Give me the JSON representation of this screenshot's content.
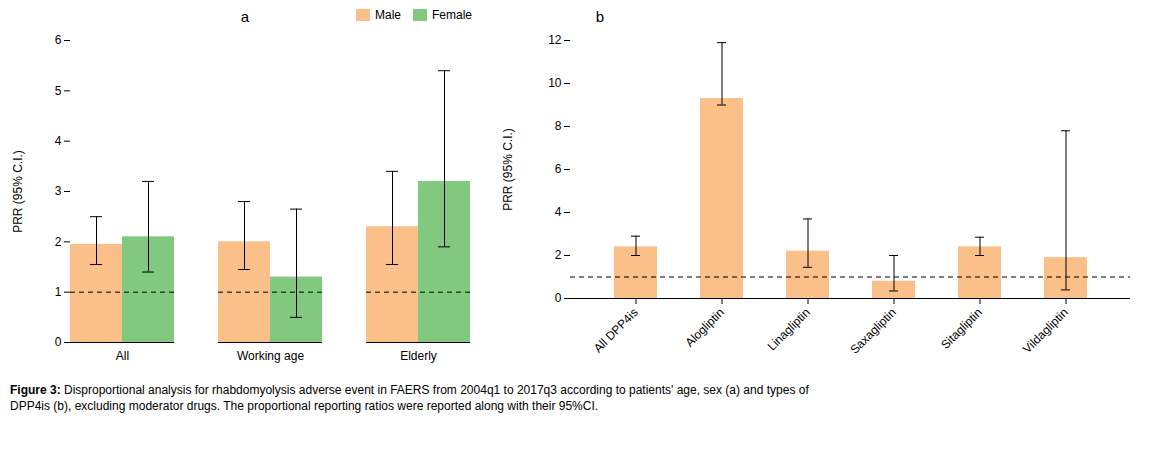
{
  "chart_data": [
    {
      "type": "bar",
      "title": "a",
      "categories": [
        "All",
        "Working age",
        "Elderly"
      ],
      "series": [
        {
          "name": "Male",
          "color": "#FBBF8A",
          "values": [
            1.95,
            2.0,
            2.3
          ],
          "ci_low": [
            1.55,
            1.45,
            1.55
          ],
          "ci_high": [
            2.5,
            2.8,
            3.4
          ]
        },
        {
          "name": "Female",
          "color": "#80C97F",
          "values": [
            2.1,
            1.3,
            3.2
          ],
          "ci_low": [
            1.4,
            0.5,
            1.9
          ],
          "ci_high": [
            3.2,
            2.65,
            5.4
          ]
        }
      ],
      "ylabel": "PRR (95% C.I.)",
      "ylim": [
        0,
        6
      ],
      "yticks": [
        0,
        1,
        2,
        3,
        4,
        5,
        6
      ],
      "reference_line": {
        "y": 1.0,
        "line_style": "dashed"
      },
      "legend": "upper right"
    },
    {
      "type": "bar",
      "title": "b",
      "categories": [
        "All DPP4is",
        "Alogliptin",
        "Linagliptin",
        "Saxagliptin",
        "Sitagliptin",
        "Vildagliptin"
      ],
      "values": [
        2.4,
        9.3,
        2.2,
        0.8,
        2.4,
        1.9
      ],
      "ci_low": [
        2.0,
        9.0,
        1.45,
        0.35,
        2.0,
        0.4
      ],
      "ci_high": [
        2.9,
        11.9,
        3.7,
        2.0,
        2.85,
        7.8
      ],
      "color": "#FBBF8A",
      "ylabel": "PRR (95% C.I.)",
      "ylim": [
        0,
        12
      ],
      "yticks": [
        0,
        2,
        4,
        6,
        8,
        10,
        12
      ],
      "reference_line": {
        "y": 1.0,
        "line_style": "dashed"
      }
    }
  ],
  "caption": {
    "bold": "Figure 3: ",
    "text": "Disproportional analysis for rhabdomyolysis adverse event in FAERS from 2004q1 to 2017q3 according to patients' age, sex (a) and types of\nDPP4is (b), excluding moderator drugs. The proportional reporting ratios were reported along with their 95%CI."
  }
}
